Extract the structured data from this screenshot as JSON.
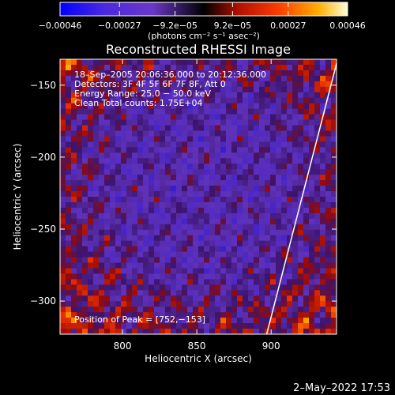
{
  "chart_data": {
    "type": "heatmap",
    "title": "Reconstructed RHESSI Image",
    "xlabel": "Heliocentric X (arcsec)",
    "ylabel": "Heliocentric Y (arcsec)",
    "xlim": [
      758,
      944
    ],
    "ylim": [
      -323,
      -132
    ],
    "x_ticks": [
      800,
      850,
      900
    ],
    "x_tick_labels": [
      "800",
      "850",
      "900"
    ],
    "y_ticks": [
      -150,
      -200,
      -250,
      -300
    ],
    "y_tick_labels": [
      "−150",
      "−200",
      "−250",
      "−300"
    ],
    "colorbar": {
      "range": [
        -0.00046,
        0.00046
      ],
      "tick_values": [
        -0.00046,
        -0.00027,
        -9.2e-05,
        9.2e-05,
        0.00027,
        0.00046
      ],
      "tick_labels": [
        "−0.00046",
        "−0.00027",
        "−9.2e−05",
        "9.2e−05",
        "0.00027",
        "0.00046"
      ],
      "unit_label": "(photons cm⁻² s⁻¹ asec⁻²)",
      "colors": [
        "#0000ff",
        "#5a1fe0",
        "#7a3ec8",
        "#000000",
        "#b01000",
        "#ff3c00",
        "#ffb000",
        "#ffffd8"
      ]
    },
    "annotations": [
      "18–Sep–2005 20:06:36.000 to 20:12:36.000",
      "Detectors: 3F 4F 5F 6F 7F 8F, Att 0",
      "Energy Range: 25.0 − 50.0 keV",
      "Clean     Total counts: 1.75E+04"
    ],
    "peak_label": "Position of Peak = [752,−153]",
    "limb_line": {
      "x": [
        897,
        944
      ],
      "y": [
        -323,
        -135
      ]
    }
  },
  "footer": {
    "timestamp": "2–May–2022 17:53"
  }
}
